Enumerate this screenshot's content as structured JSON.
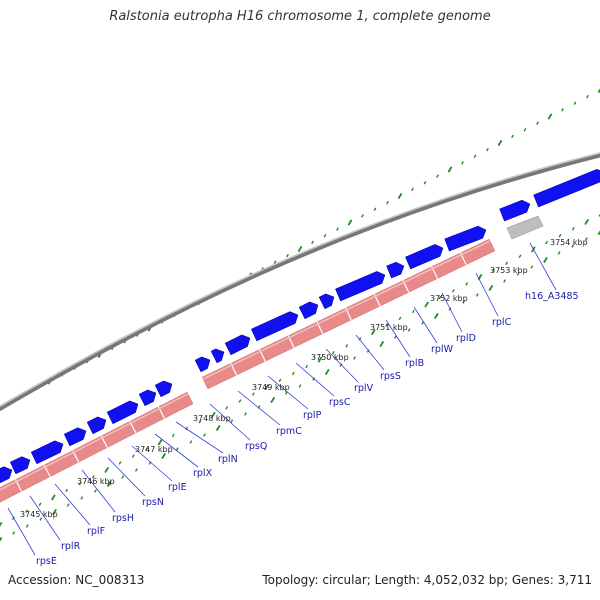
{
  "title": "Ralstonia eutropha H16 chromosome 1, complete genome",
  "footer": {
    "accession": "Accession: NC_008313",
    "stats": "Topology: circular; Length: 4,052,032 bp; Genes: 3,711"
  },
  "colors": {
    "backbone": "#9a9a9a",
    "gene_blue": "#1010f0",
    "gene_pink": "#e88a8a",
    "gene_gray": "#bdbdbd",
    "tick_green": "#238b23",
    "label_blue": "#1a1aaa",
    "connector": "#3a3adf"
  },
  "kbp_labels": [
    "3745 kbp",
    "3746 kbp",
    "3747 kbp",
    "3748 kbp",
    "3749 kbp",
    "3750 kbp",
    "3751 kbp",
    "3752 kbp",
    "3753 kbp",
    "3754 kbp"
  ],
  "gene_labels": [
    "rpsE",
    "rplR",
    "rplF",
    "rpsH",
    "rpsN",
    "rplE",
    "rplX",
    "rplN",
    "rpsQ",
    "rpmC",
    "rplP",
    "rpsC",
    "rplV",
    "rpsS",
    "rplB",
    "rplW",
    "rplD",
    "rplC",
    "h16_A3485"
  ]
}
